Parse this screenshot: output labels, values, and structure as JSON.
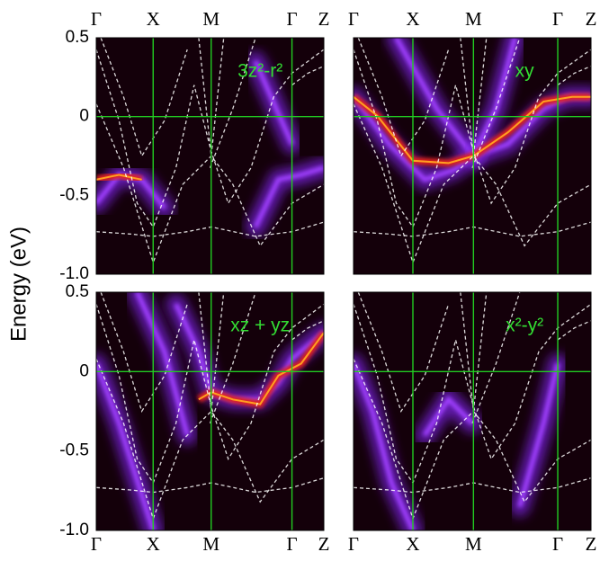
{
  "chart_data": [
    {
      "type": "heatmap",
      "title": "3z²-r²",
      "ylabel": "Energy (eV)",
      "categories": [
        "Γ",
        "X",
        "M",
        "Γ",
        "Z"
      ],
      "ylim": [
        -1,
        0.5
      ],
      "yticks": [
        {
          "value": -1,
          "label": "-1.0"
        },
        -0.5,
        0,
        0.5
      ]
    },
    {
      "type": "heatmap",
      "title": "xy",
      "categories": [
        "Γ",
        "X",
        "M",
        "Γ",
        "Z"
      ],
      "ylim": [
        -1,
        0.5
      ]
    },
    {
      "type": "heatmap",
      "title": "xz + yz",
      "categories": [
        "Γ",
        "X",
        "M",
        "Γ",
        "Z"
      ],
      "ylim": [
        -1,
        0.5
      ],
      "yticks": [
        {
          "value": -1,
          "label": "-1.0"
        },
        -0.5,
        0,
        0.5
      ]
    },
    {
      "type": "heatmap",
      "title": "x²-y²",
      "categories": [
        "Γ",
        "X",
        "M",
        "Γ",
        "Z"
      ],
      "ylim": [
        -1,
        0.5
      ]
    }
  ]
}
